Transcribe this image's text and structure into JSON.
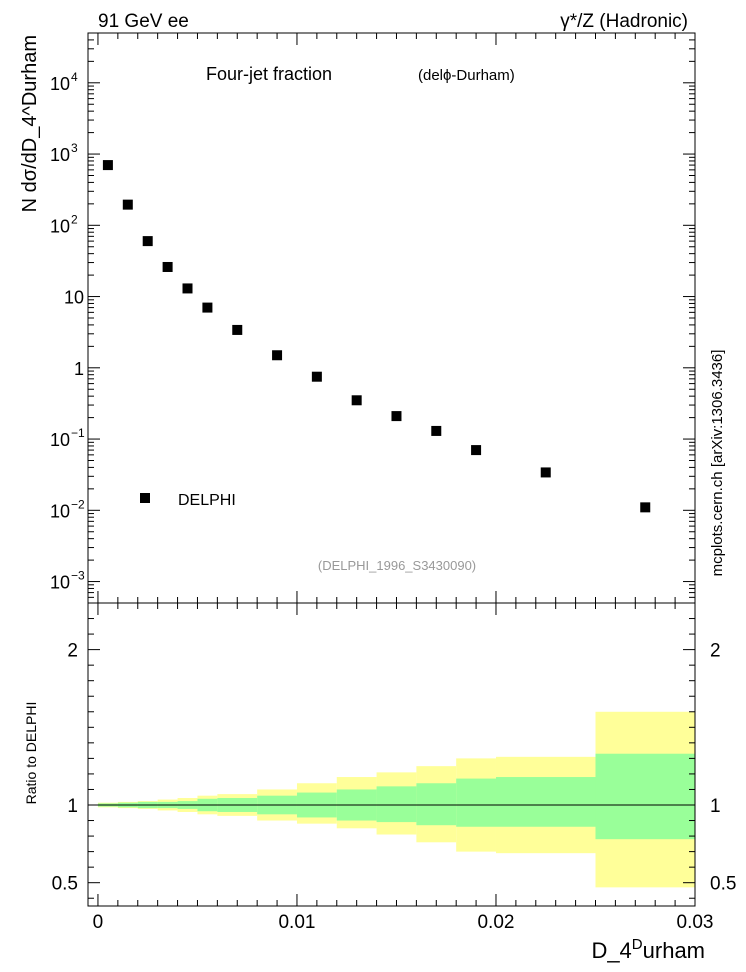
{
  "header": {
    "left": "91 GeV ee",
    "right": "γ*/Z (Hadronic)"
  },
  "side_label": "mcplots.cern.ch [arXiv:1306.3436]",
  "colors": {
    "ratio_inner_band": "#99ff99",
    "ratio_outer_band": "#ffff99",
    "marker": "#000000",
    "analysis_label": "#999999"
  },
  "chart_data": [
    {
      "type": "scatter",
      "panel": "main",
      "title": "Four-jet fraction",
      "subtitle": "(delϕ-Durham)",
      "analysis_label": "(DELPHI_1996_S3430090)",
      "ylabel": "N dσ/dD_4^Durham",
      "yscale": "log",
      "xlim": [
        -0.0005,
        0.03
      ],
      "ylim": [
        0.0005,
        50000
      ],
      "yticks": [
        {
          "v": 0.001,
          "base": "10",
          "exp": "−3"
        },
        {
          "v": 0.01,
          "base": "10",
          "exp": "−2"
        },
        {
          "v": 0.1,
          "base": "10",
          "exp": "−1"
        },
        {
          "v": 1,
          "base": "1",
          "exp": ""
        },
        {
          "v": 10,
          "base": "10",
          "exp": ""
        },
        {
          "v": 100,
          "base": "10",
          "exp": "2"
        },
        {
          "v": 1000,
          "base": "10",
          "exp": "3"
        },
        {
          "v": 10000,
          "base": "10",
          "exp": "4"
        }
      ],
      "legend": {
        "position": "bottom-left",
        "entries": [
          "DELPHI"
        ]
      },
      "series": [
        {
          "name": "DELPHI",
          "marker": "square",
          "x": [
            0.0005,
            0.0015,
            0.0025,
            0.0035,
            0.0045,
            0.0055,
            0.007,
            0.009,
            0.011,
            0.013,
            0.015,
            0.017,
            0.019,
            0.0225,
            0.0275
          ],
          "y": [
            700,
            195,
            60,
            26,
            13,
            7,
            3.4,
            1.5,
            0.75,
            0.35,
            0.21,
            0.13,
            0.07,
            0.034,
            0.011
          ]
        }
      ]
    },
    {
      "type": "area",
      "panel": "ratio",
      "ylabel": "Ratio to DELPHI",
      "xlabel": "D_4^Durham",
      "xlim": [
        -0.0005,
        0.03
      ],
      "ylim": [
        0.35,
        2.3
      ],
      "yticks": [
        0.5,
        1,
        2
      ],
      "xticks": [
        {
          "v": 0,
          "label": "0"
        },
        {
          "v": 0.01,
          "label": "0.01"
        },
        {
          "v": 0.02,
          "label": "0.02"
        },
        {
          "v": 0.03,
          "label": "0.03"
        }
      ],
      "bins": [
        {
          "lo": 0.0,
          "hi": 0.001,
          "inner": [
            0.99,
            1.01
          ],
          "outer": [
            0.985,
            1.015
          ]
        },
        {
          "lo": 0.001,
          "hi": 0.002,
          "inner": [
            0.985,
            1.015
          ],
          "outer": [
            0.98,
            1.02
          ]
        },
        {
          "lo": 0.002,
          "hi": 0.003,
          "inner": [
            0.98,
            1.02
          ],
          "outer": [
            0.975,
            1.025
          ]
        },
        {
          "lo": 0.003,
          "hi": 0.004,
          "inner": [
            0.98,
            1.02
          ],
          "outer": [
            0.965,
            1.035
          ]
        },
        {
          "lo": 0.004,
          "hi": 0.005,
          "inner": [
            0.975,
            1.025
          ],
          "outer": [
            0.955,
            1.045
          ]
        },
        {
          "lo": 0.005,
          "hi": 0.006,
          "inner": [
            0.96,
            1.04
          ],
          "outer": [
            0.94,
            1.06
          ]
        },
        {
          "lo": 0.006,
          "hi": 0.008,
          "inner": [
            0.955,
            1.045
          ],
          "outer": [
            0.93,
            1.07
          ]
        },
        {
          "lo": 0.008,
          "hi": 0.01,
          "inner": [
            0.94,
            1.06
          ],
          "outer": [
            0.9,
            1.1
          ]
        },
        {
          "lo": 0.01,
          "hi": 0.012,
          "inner": [
            0.92,
            1.08
          ],
          "outer": [
            0.88,
            1.14
          ]
        },
        {
          "lo": 0.012,
          "hi": 0.014,
          "inner": [
            0.9,
            1.1
          ],
          "outer": [
            0.85,
            1.18
          ]
        },
        {
          "lo": 0.014,
          "hi": 0.016,
          "inner": [
            0.89,
            1.12
          ],
          "outer": [
            0.81,
            1.21
          ]
        },
        {
          "lo": 0.016,
          "hi": 0.018,
          "inner": [
            0.87,
            1.14
          ],
          "outer": [
            0.76,
            1.25
          ]
        },
        {
          "lo": 0.018,
          "hi": 0.02,
          "inner": [
            0.86,
            1.17
          ],
          "outer": [
            0.7,
            1.3
          ]
        },
        {
          "lo": 0.02,
          "hi": 0.025,
          "inner": [
            0.86,
            1.18
          ],
          "outer": [
            0.69,
            1.31
          ]
        },
        {
          "lo": 0.025,
          "hi": 0.03,
          "inner": [
            0.78,
            1.33
          ],
          "outer": [
            0.47,
            1.6
          ]
        }
      ]
    }
  ]
}
